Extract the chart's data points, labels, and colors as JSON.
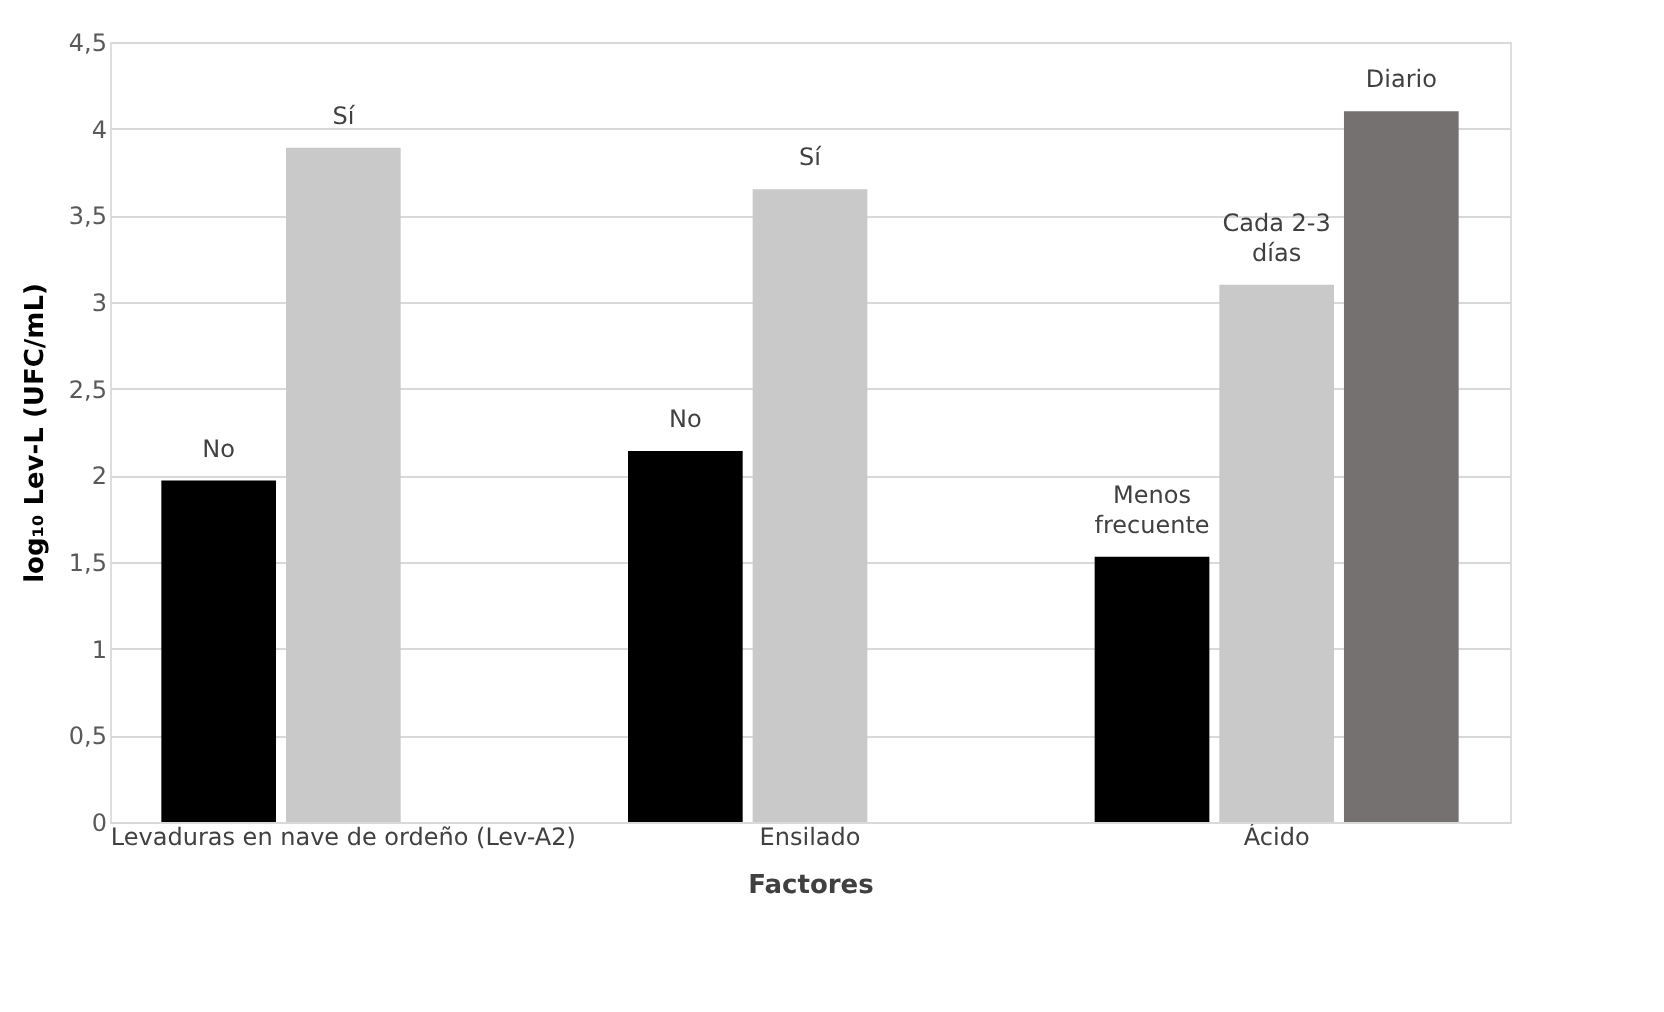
{
  "chart_data": {
    "type": "bar",
    "xlabel": "Factores",
    "ylabel": "log₁₀ Lev-L (UFC/mL)",
    "categories": [
      "Levaduras en nave de ordeño (Lev-A2)",
      "Ensilado",
      "Ácido"
    ],
    "series": [
      {
        "color": "#000000",
        "values": [
          1.97,
          2.14,
          1.53
        ],
        "value_labels": [
          "No",
          "No",
          "Menos\nfrecuente"
        ]
      },
      {
        "color": "#c9c9c9",
        "values": [
          3.89,
          3.65,
          3.1
        ],
        "value_labels": [
          "Sí",
          "Sí",
          "Cada 2-3\ndías"
        ]
      },
      {
        "color": "#767171",
        "values": [
          null,
          null,
          4.1
        ],
        "value_labels": [
          null,
          null,
          "Diario"
        ]
      }
    ],
    "ylim": [
      0,
      4.5
    ],
    "yticks": [
      {
        "value": 0,
        "label": "0"
      },
      {
        "value": 0.5,
        "label": "0,5"
      },
      {
        "value": 1,
        "label": "1"
      },
      {
        "value": 1.5,
        "label": "1,5"
      },
      {
        "value": 2,
        "label": "2"
      },
      {
        "value": 2.5,
        "label": "2,5"
      },
      {
        "value": 3,
        "label": "3"
      },
      {
        "value": 3.5,
        "label": "3,5"
      },
      {
        "value": 4,
        "label": "4"
      },
      {
        "value": 4.5,
        "label": "4,5"
      }
    ],
    "grid": "y",
    "legend": false
  }
}
